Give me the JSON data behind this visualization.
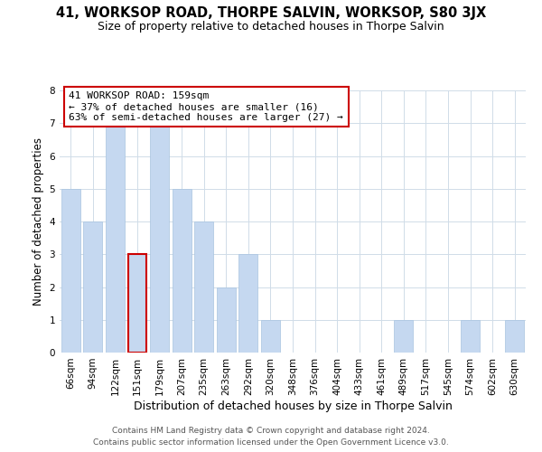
{
  "title": "41, WORKSOP ROAD, THORPE SALVIN, WORKSOP, S80 3JX",
  "subtitle": "Size of property relative to detached houses in Thorpe Salvin",
  "xlabel": "Distribution of detached houses by size in Thorpe Salvin",
  "ylabel": "Number of detached properties",
  "categories": [
    "66sqm",
    "94sqm",
    "122sqm",
    "151sqm",
    "179sqm",
    "207sqm",
    "235sqm",
    "263sqm",
    "292sqm",
    "320sqm",
    "348sqm",
    "376sqm",
    "404sqm",
    "433sqm",
    "461sqm",
    "489sqm",
    "517sqm",
    "545sqm",
    "574sqm",
    "602sqm",
    "630sqm"
  ],
  "values": [
    5,
    4,
    7,
    3,
    7,
    5,
    4,
    2,
    3,
    1,
    0,
    0,
    0,
    0,
    0,
    1,
    0,
    0,
    1,
    0,
    1
  ],
  "bar_color": "#c5d8f0",
  "bar_edge_color": "#a8c4e0",
  "highlight_bar_index": 3,
  "highlight_color": "#cc0000",
  "annotation_line1": "41 WORKSOP ROAD: 159sqm",
  "annotation_line2": "← 37% of detached houses are smaller (16)",
  "annotation_line3": "63% of semi-detached houses are larger (27) →",
  "annotation_box_color": "#ffffff",
  "annotation_box_edge": "#cc0000",
  "ylim": [
    0,
    8
  ],
  "yticks": [
    0,
    1,
    2,
    3,
    4,
    5,
    6,
    7,
    8
  ],
  "footer1": "Contains HM Land Registry data © Crown copyright and database right 2024.",
  "footer2": "Contains public sector information licensed under the Open Government Licence v3.0.",
  "background_color": "#ffffff",
  "grid_color": "#d0dce8",
  "title_fontsize": 10.5,
  "subtitle_fontsize": 9,
  "xlabel_fontsize": 9,
  "ylabel_fontsize": 8.5,
  "tick_fontsize": 7.5,
  "annotation_fontsize": 8,
  "footer_fontsize": 6.5
}
